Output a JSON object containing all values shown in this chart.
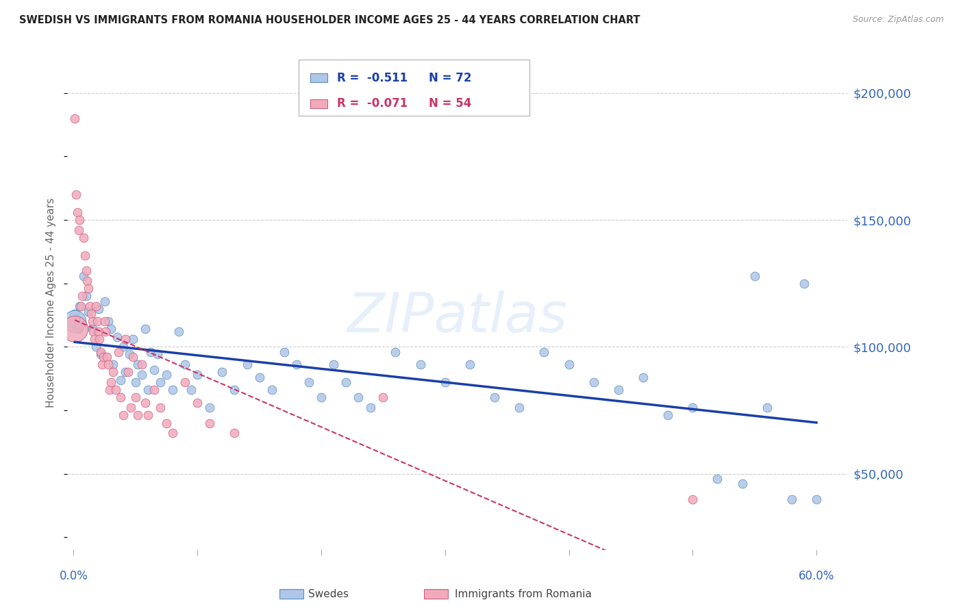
{
  "title": "SWEDISH VS IMMIGRANTS FROM ROMANIA HOUSEHOLDER INCOME AGES 25 - 44 YEARS CORRELATION CHART",
  "source": "Source: ZipAtlas.com",
  "ylabel": "Householder Income Ages 25 - 44 years",
  "ytick_labels": [
    "$50,000",
    "$100,000",
    "$150,000",
    "$200,000"
  ],
  "ytick_values": [
    50000,
    100000,
    150000,
    200000
  ],
  "ymin": 20000,
  "ymax": 215000,
  "xmin": -0.005,
  "xmax": 0.625,
  "swedes_color": "#aec6e8",
  "swedes_edge": "#5b8db8",
  "romania_color": "#f2aabb",
  "romania_edge": "#c96080",
  "trendline_swedes_color": "#1a3faa",
  "trendline_romania_color": "#cc3366",
  "legend_R_swedes": "-0.511",
  "legend_N_swedes": "72",
  "legend_R_romania": "-0.071",
  "legend_N_romania": "54",
  "watermark": "ZIPatlas",
  "background_color": "#ffffff",
  "grid_color": "#cccccc",
  "axis_label_color": "#3366bb",
  "swedes_data": [
    [
      0.001,
      113000
    ],
    [
      0.002,
      108000
    ],
    [
      0.003,
      111000
    ],
    [
      0.004,
      107000
    ],
    [
      0.005,
      116000
    ],
    [
      0.006,
      109000
    ],
    [
      0.008,
      128000
    ],
    [
      0.01,
      120000
    ],
    [
      0.012,
      114000
    ],
    [
      0.015,
      107000
    ],
    [
      0.018,
      100000
    ],
    [
      0.02,
      115000
    ],
    [
      0.022,
      97000
    ],
    [
      0.025,
      118000
    ],
    [
      0.028,
      110000
    ],
    [
      0.03,
      107000
    ],
    [
      0.032,
      93000
    ],
    [
      0.035,
      104000
    ],
    [
      0.038,
      87000
    ],
    [
      0.04,
      100000
    ],
    [
      0.042,
      90000
    ],
    [
      0.045,
      97000
    ],
    [
      0.048,
      103000
    ],
    [
      0.05,
      86000
    ],
    [
      0.052,
      93000
    ],
    [
      0.055,
      89000
    ],
    [
      0.058,
      107000
    ],
    [
      0.06,
      83000
    ],
    [
      0.062,
      98000
    ],
    [
      0.065,
      91000
    ],
    [
      0.068,
      97000
    ],
    [
      0.07,
      86000
    ],
    [
      0.075,
      89000
    ],
    [
      0.08,
      83000
    ],
    [
      0.085,
      106000
    ],
    [
      0.09,
      93000
    ],
    [
      0.095,
      83000
    ],
    [
      0.1,
      89000
    ],
    [
      0.11,
      76000
    ],
    [
      0.12,
      90000
    ],
    [
      0.13,
      83000
    ],
    [
      0.14,
      93000
    ],
    [
      0.15,
      88000
    ],
    [
      0.16,
      83000
    ],
    [
      0.17,
      98000
    ],
    [
      0.18,
      93000
    ],
    [
      0.19,
      86000
    ],
    [
      0.2,
      80000
    ],
    [
      0.21,
      93000
    ],
    [
      0.22,
      86000
    ],
    [
      0.23,
      80000
    ],
    [
      0.24,
      76000
    ],
    [
      0.26,
      98000
    ],
    [
      0.28,
      93000
    ],
    [
      0.3,
      86000
    ],
    [
      0.32,
      93000
    ],
    [
      0.34,
      80000
    ],
    [
      0.36,
      76000
    ],
    [
      0.38,
      98000
    ],
    [
      0.4,
      93000
    ],
    [
      0.42,
      86000
    ],
    [
      0.44,
      83000
    ],
    [
      0.46,
      88000
    ],
    [
      0.48,
      73000
    ],
    [
      0.5,
      76000
    ],
    [
      0.52,
      48000
    ],
    [
      0.54,
      46000
    ],
    [
      0.55,
      128000
    ],
    [
      0.56,
      76000
    ],
    [
      0.58,
      40000
    ],
    [
      0.59,
      125000
    ],
    [
      0.6,
      40000
    ]
  ],
  "swedes_sizes": [
    80,
    80,
    80,
    80,
    80,
    80,
    80,
    80,
    80,
    80,
    80,
    80,
    80,
    80,
    80,
    80,
    80,
    80,
    80,
    80,
    80,
    80,
    80,
    80,
    80,
    80,
    80,
    80,
    80,
    80,
    80,
    80,
    80,
    80,
    80,
    80,
    80,
    80,
    80,
    80,
    80,
    80,
    80,
    80,
    80,
    80,
    80,
    80,
    80,
    80,
    80,
    80,
    80,
    80,
    80,
    80,
    80,
    80,
    80,
    80,
    80,
    80,
    80,
    80,
    80,
    80,
    80,
    80,
    80,
    80,
    80,
    80
  ],
  "romania_data": [
    [
      0.001,
      190000
    ],
    [
      0.002,
      160000
    ],
    [
      0.003,
      153000
    ],
    [
      0.004,
      146000
    ],
    [
      0.005,
      150000
    ],
    [
      0.006,
      116000
    ],
    [
      0.007,
      120000
    ],
    [
      0.008,
      143000
    ],
    [
      0.009,
      136000
    ],
    [
      0.01,
      130000
    ],
    [
      0.011,
      126000
    ],
    [
      0.012,
      123000
    ],
    [
      0.013,
      116000
    ],
    [
      0.014,
      113000
    ],
    [
      0.015,
      110000
    ],
    [
      0.016,
      106000
    ],
    [
      0.017,
      103000
    ],
    [
      0.018,
      116000
    ],
    [
      0.019,
      110000
    ],
    [
      0.02,
      106000
    ],
    [
      0.021,
      103000
    ],
    [
      0.022,
      98000
    ],
    [
      0.023,
      93000
    ],
    [
      0.024,
      96000
    ],
    [
      0.025,
      110000
    ],
    [
      0.026,
      106000
    ],
    [
      0.027,
      96000
    ],
    [
      0.028,
      93000
    ],
    [
      0.029,
      83000
    ],
    [
      0.03,
      86000
    ],
    [
      0.032,
      90000
    ],
    [
      0.034,
      83000
    ],
    [
      0.036,
      98000
    ],
    [
      0.038,
      80000
    ],
    [
      0.04,
      73000
    ],
    [
      0.042,
      103000
    ],
    [
      0.044,
      90000
    ],
    [
      0.046,
      76000
    ],
    [
      0.048,
      96000
    ],
    [
      0.05,
      80000
    ],
    [
      0.052,
      73000
    ],
    [
      0.055,
      93000
    ],
    [
      0.058,
      78000
    ],
    [
      0.06,
      73000
    ],
    [
      0.065,
      83000
    ],
    [
      0.07,
      76000
    ],
    [
      0.075,
      70000
    ],
    [
      0.08,
      66000
    ],
    [
      0.09,
      86000
    ],
    [
      0.1,
      78000
    ],
    [
      0.11,
      70000
    ],
    [
      0.13,
      66000
    ],
    [
      0.25,
      80000
    ],
    [
      0.5,
      40000
    ]
  ],
  "romania_sizes": [
    80,
    80,
    80,
    80,
    80,
    80,
    80,
    80,
    80,
    80,
    80,
    80,
    80,
    80,
    80,
    80,
    80,
    80,
    80,
    80,
    80,
    80,
    80,
    80,
    80,
    80,
    80,
    80,
    80,
    80,
    80,
    80,
    80,
    80,
    80,
    80,
    80,
    80,
    80,
    80,
    80,
    80,
    80,
    80,
    80,
    80,
    80,
    80,
    80,
    80,
    80,
    80,
    80,
    80
  ],
  "swedes_big": [
    [
      0.001,
      110000,
      550
    ]
  ],
  "romania_big": [
    [
      0.001,
      107000,
      750
    ]
  ]
}
